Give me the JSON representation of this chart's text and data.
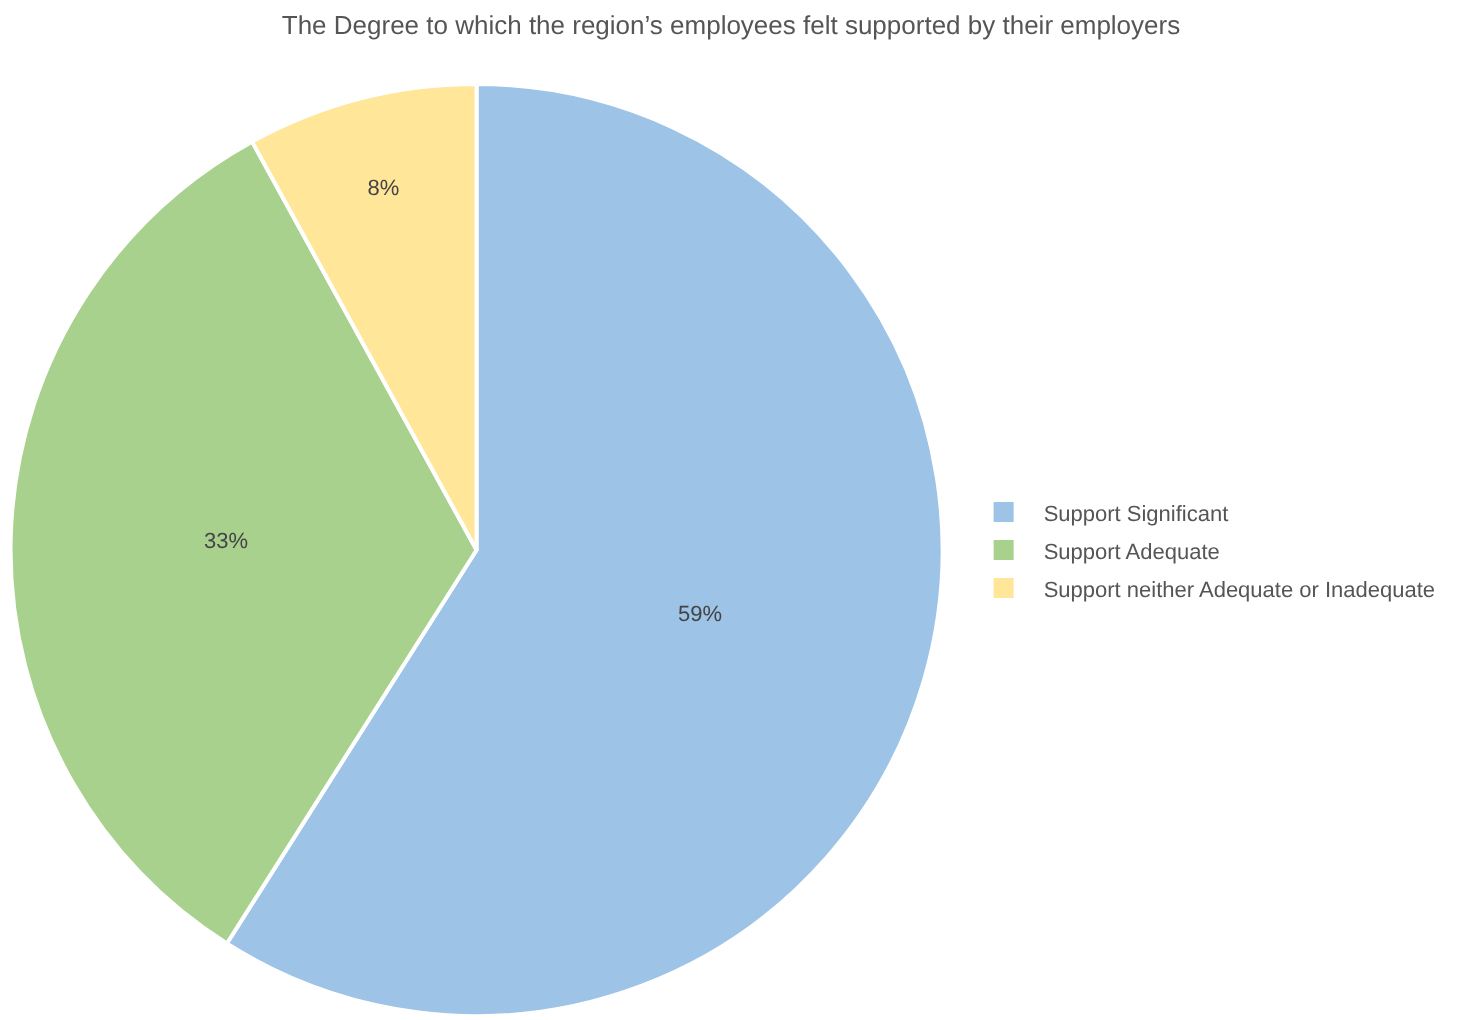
{
  "chart_data": {
    "type": "pie",
    "title": "The Degree to which the region’s employees felt supported by their employers",
    "categories": [
      "Support Significant",
      "Support Adequate",
      "Support neither Adequate or Inadequate"
    ],
    "values": [
      59,
      33,
      8
    ],
    "value_labels": [
      "59%",
      "33%",
      "8%"
    ],
    "colors": [
      "#9dc3e6",
      "#a9d18e",
      "#ffe699"
    ],
    "legend": "right"
  }
}
